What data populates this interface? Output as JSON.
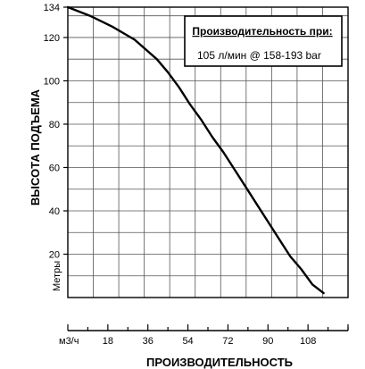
{
  "chart_data": {
    "type": "line",
    "title": "",
    "xlabel": "ПРОИЗВОДИТЕЛЬНОСТЬ",
    "ylabel": "ВЫСОТА ПОДЪЕМА",
    "x_unit": "м3/ч",
    "y_unit": "Метры",
    "xlim": [
      0,
      126
    ],
    "ylim": [
      0,
      134
    ],
    "x_ticks": [
      18,
      36,
      54,
      72,
      90,
      108
    ],
    "y_ticks": [
      20,
      40,
      60,
      80,
      100,
      120,
      134
    ],
    "grid": true,
    "legend_position": "top-right",
    "legend": {
      "title": "Производительность при:",
      "text": "105 л/мин @ 158-193 bar"
    },
    "series": [
      {
        "x": [
          0,
          10,
          20,
          30,
          40,
          45,
          50,
          55,
          60,
          65,
          70,
          75,
          80,
          85,
          90,
          95,
          100,
          105,
          110,
          115
        ],
        "y": [
          134,
          130,
          125,
          119,
          110,
          104,
          97,
          89,
          82,
          74,
          67,
          59,
          51,
          43,
          35,
          27,
          19,
          13,
          6,
          2
        ]
      }
    ]
  }
}
